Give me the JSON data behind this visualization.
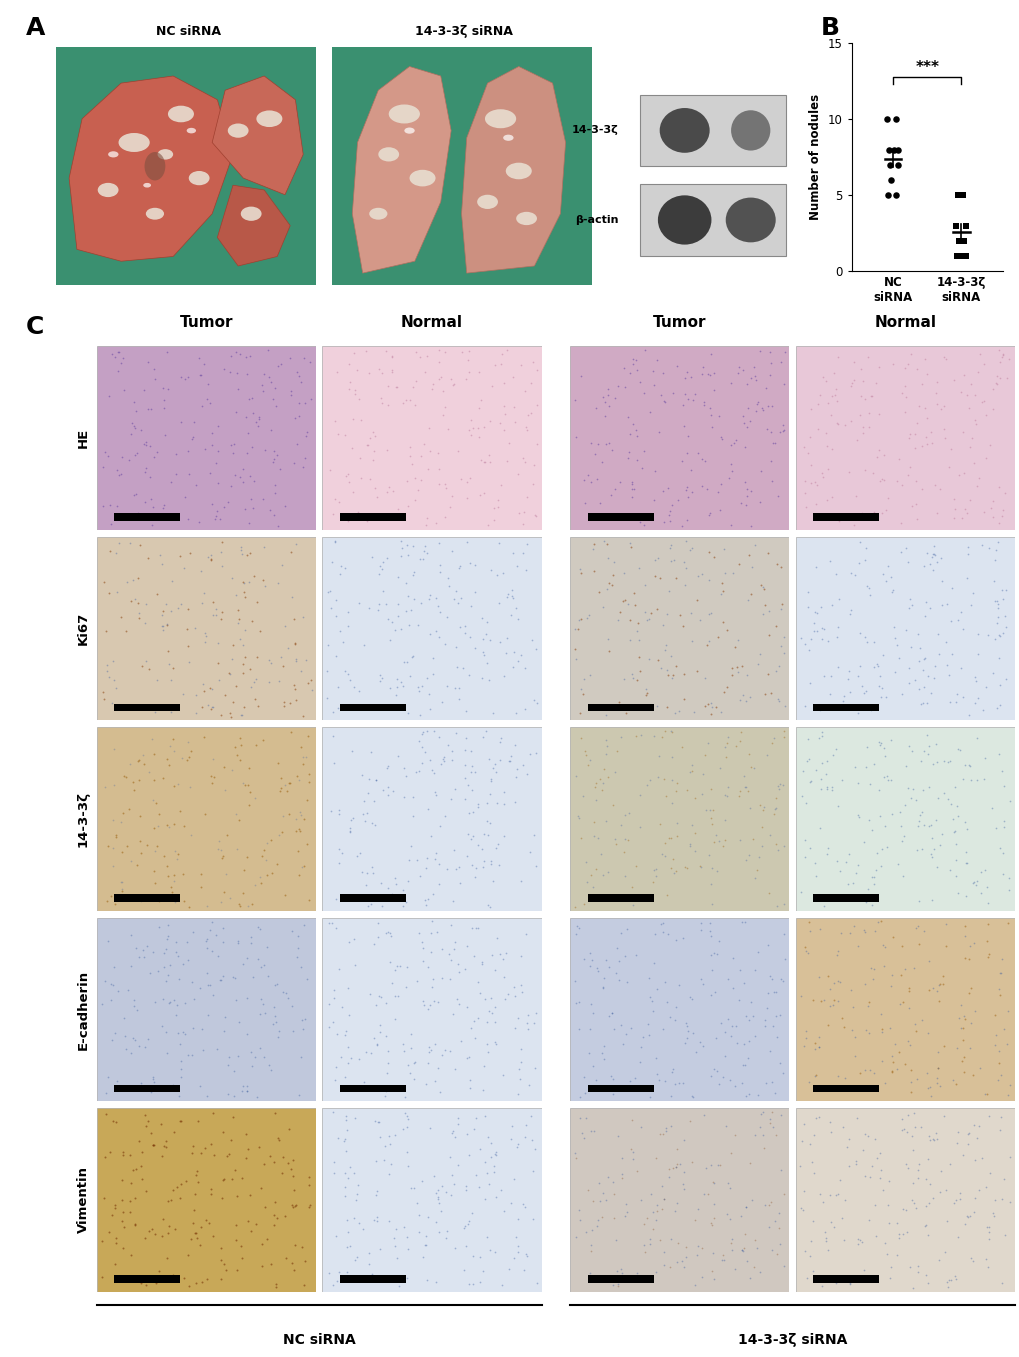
{
  "panel_A_label": "A",
  "panel_B_label": "B",
  "panel_C_label": "C",
  "nc_sirna_label": "NC siRNA",
  "ko_sirna_label": "14-3-3ζ siRNA",
  "wb_protein1": "14-3-3ζ",
  "wb_protein2": "β-actin",
  "ylabel": "Number of nodules",
  "ylim": [
    0,
    15
  ],
  "yticks": [
    0,
    5,
    10,
    15
  ],
  "group1_label": "NC\nsiRNA",
  "group2_label": "14-3-3ζ\nsiRNA",
  "nc_data": [
    10,
    10,
    8,
    8,
    8,
    7,
    7,
    6,
    5,
    5
  ],
  "ko_data": [
    5,
    5,
    3,
    3,
    2,
    2,
    1,
    1,
    1
  ],
  "nc_mean": 7.4,
  "nc_sem": 0.55,
  "ko_mean": 2.6,
  "ko_sem": 0.5,
  "significance": "***",
  "row_labels": [
    "HE",
    "Ki67",
    "14-3-3ζ",
    "E-cadherin",
    "Vimentin"
  ],
  "col_labels": [
    "Tumor",
    "Normal",
    "Tumor",
    "Normal"
  ],
  "bg_color": "#ffffff"
}
